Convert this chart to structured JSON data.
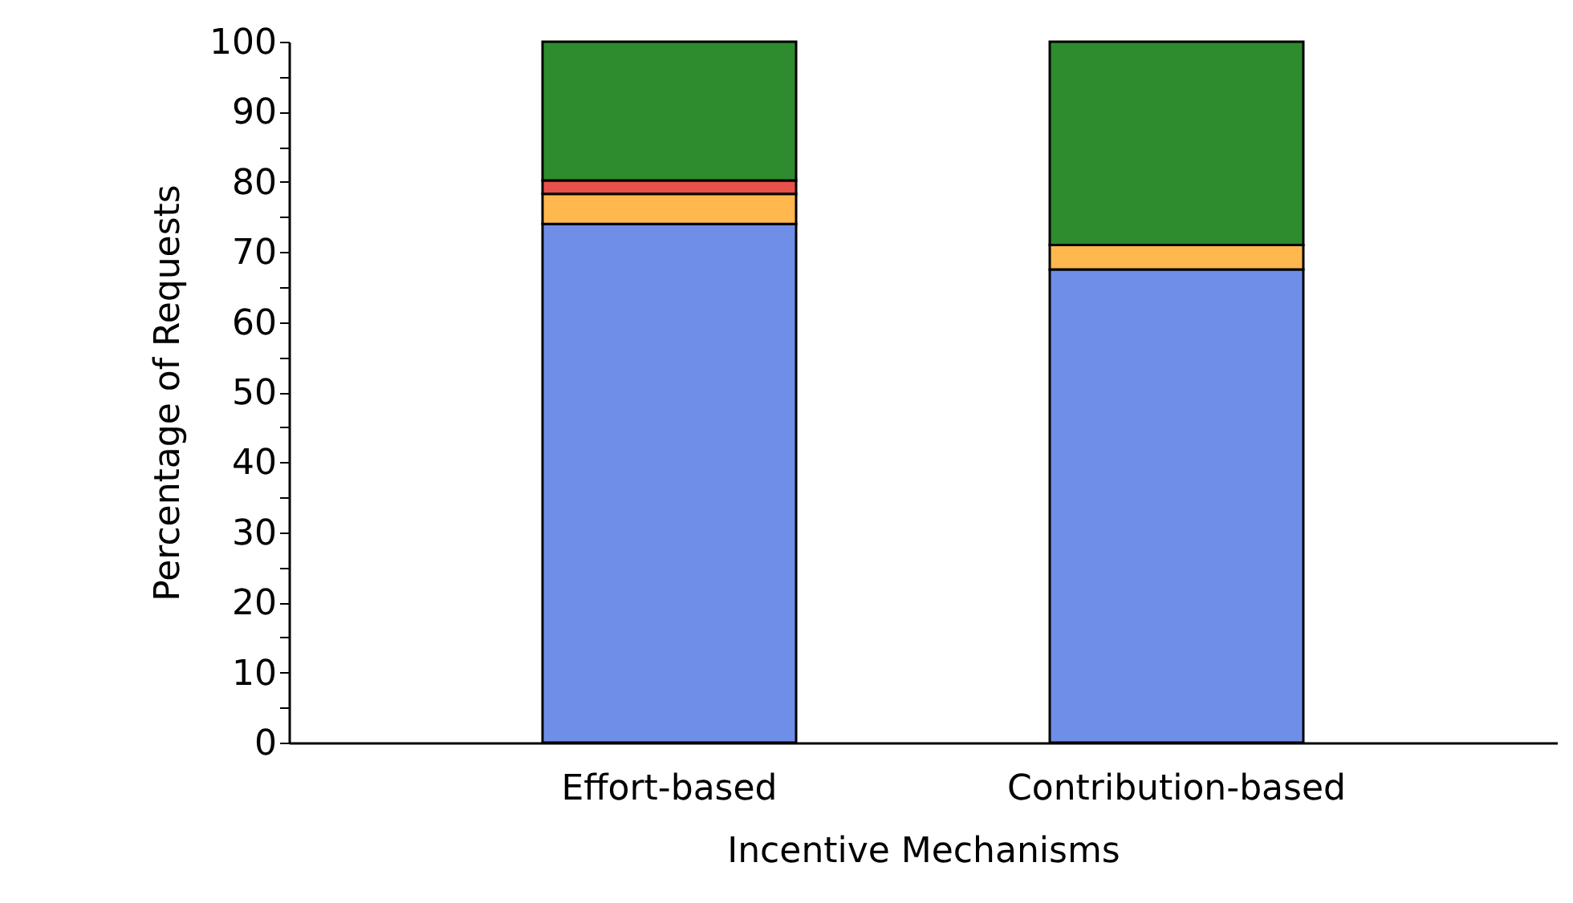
{
  "chart_data": {
    "type": "bar",
    "stacked": true,
    "xlabel": "Incentive Mechanisms",
    "ylabel": "Percentage of Requests",
    "categories": [
      "Effort-based",
      "Contribution-based"
    ],
    "series": [
      {
        "color": "#6f8ee8",
        "values": [
          74,
          67.5
        ]
      },
      {
        "color": "#ffb84d",
        "values": [
          4.3,
          3.5
        ]
      },
      {
        "color": "#e8504a",
        "values": [
          1.9,
          null
        ]
      },
      {
        "color": "#2e8b2e",
        "values": [
          19.8,
          29
        ]
      }
    ],
    "ylim": [
      0,
      100
    ],
    "yticks": [
      0,
      {
        "value": 5,
        "label": null
      },
      10,
      {
        "value": 15,
        "label": null
      },
      20,
      {
        "value": 25,
        "label": null
      },
      30,
      {
        "value": 35,
        "label": null
      },
      40,
      {
        "value": 45,
        "label": null
      },
      50,
      {
        "value": 55,
        "label": null
      },
      60,
      {
        "value": 65,
        "label": null
      },
      70,
      {
        "value": 75,
        "label": null
      },
      80,
      {
        "value": 85,
        "label": null
      },
      90,
      {
        "value": 95,
        "label": null
      },
      100
    ],
    "grid": false,
    "legend": false
  }
}
